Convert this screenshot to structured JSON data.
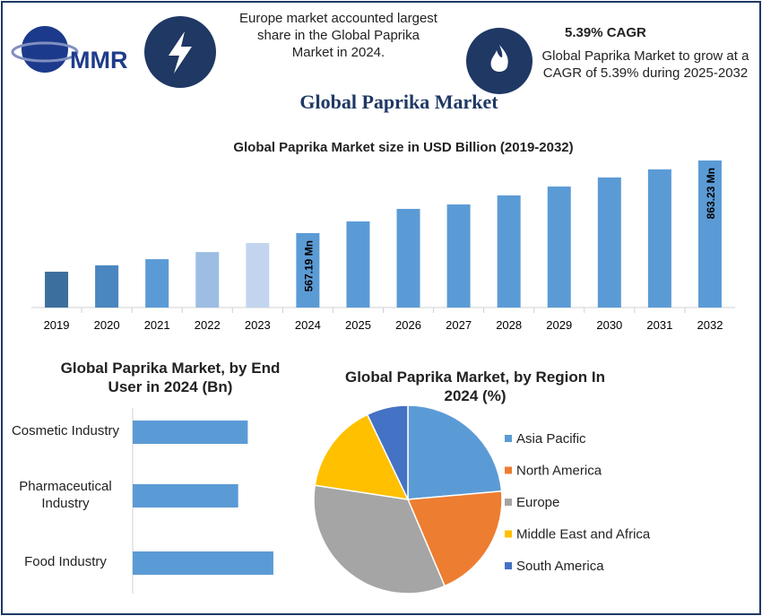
{
  "header": {
    "logo": "MMR",
    "left_text": "Europe market accounted largest share in the Global Paprika Market in 2024.",
    "cagr_title": "5.39% CAGR",
    "cagr_text": "Global Paprika Market to grow at a CAGR of 5.39% during 2025-2032",
    "main_title": "Global Paprika Market"
  },
  "chart_data": [
    {
      "type": "bar",
      "title": "Global Paprika Market size in USD Billion (2019-2032)",
      "categories": [
        "2019",
        "2020",
        "2021",
        "2022",
        "2023",
        "2024",
        "2025",
        "2026",
        "2027",
        "2028",
        "2029",
        "2030",
        "2031",
        "2032"
      ],
      "values": [
        410,
        436,
        461,
        490,
        527,
        567.19,
        615,
        666,
        684,
        721,
        757,
        794,
        827,
        863.23
      ],
      "value_labels": [
        null,
        null,
        null,
        null,
        null,
        "567.19 Mn",
        null,
        null,
        null,
        null,
        null,
        null,
        null,
        "863.23 Mn"
      ],
      "colors": [
        "#3d6f9e",
        "#4a86bf",
        "#5b9bd5",
        "#9dbde3",
        "#c3d5ee",
        "#5b9bd5",
        "#5b9bd5",
        "#5b9bd5",
        "#5b9bd5",
        "#5b9bd5",
        "#5b9bd5",
        "#5b9bd5",
        "#5b9bd5",
        "#5b9bd5"
      ],
      "ylim": [
        264,
        896
      ]
    },
    {
      "type": "hbar",
      "title": "Global Paprika Market, by End User in 2024 (Bn)",
      "categories": [
        "Cosmetic Industry",
        "Pharmaceutical Industry",
        "Food Industry"
      ],
      "values": [
        0.18,
        0.165,
        0.22
      ],
      "color": "#5b9bd5",
      "xlim": [
        0,
        0.3
      ]
    },
    {
      "type": "pie",
      "title": "Global Paprika Market, by Region In 2024 (%)",
      "categories": [
        "Asia Pacific",
        "North America",
        "Europe",
        "Middle East and Africa",
        "South America"
      ],
      "values": [
        23.6,
        20,
        33.8,
        15.5,
        7.1
      ],
      "colors": [
        "#5b9bd5",
        "#ed7d31",
        "#a5a5a5",
        "#ffc000",
        "#4472c4"
      ]
    }
  ]
}
